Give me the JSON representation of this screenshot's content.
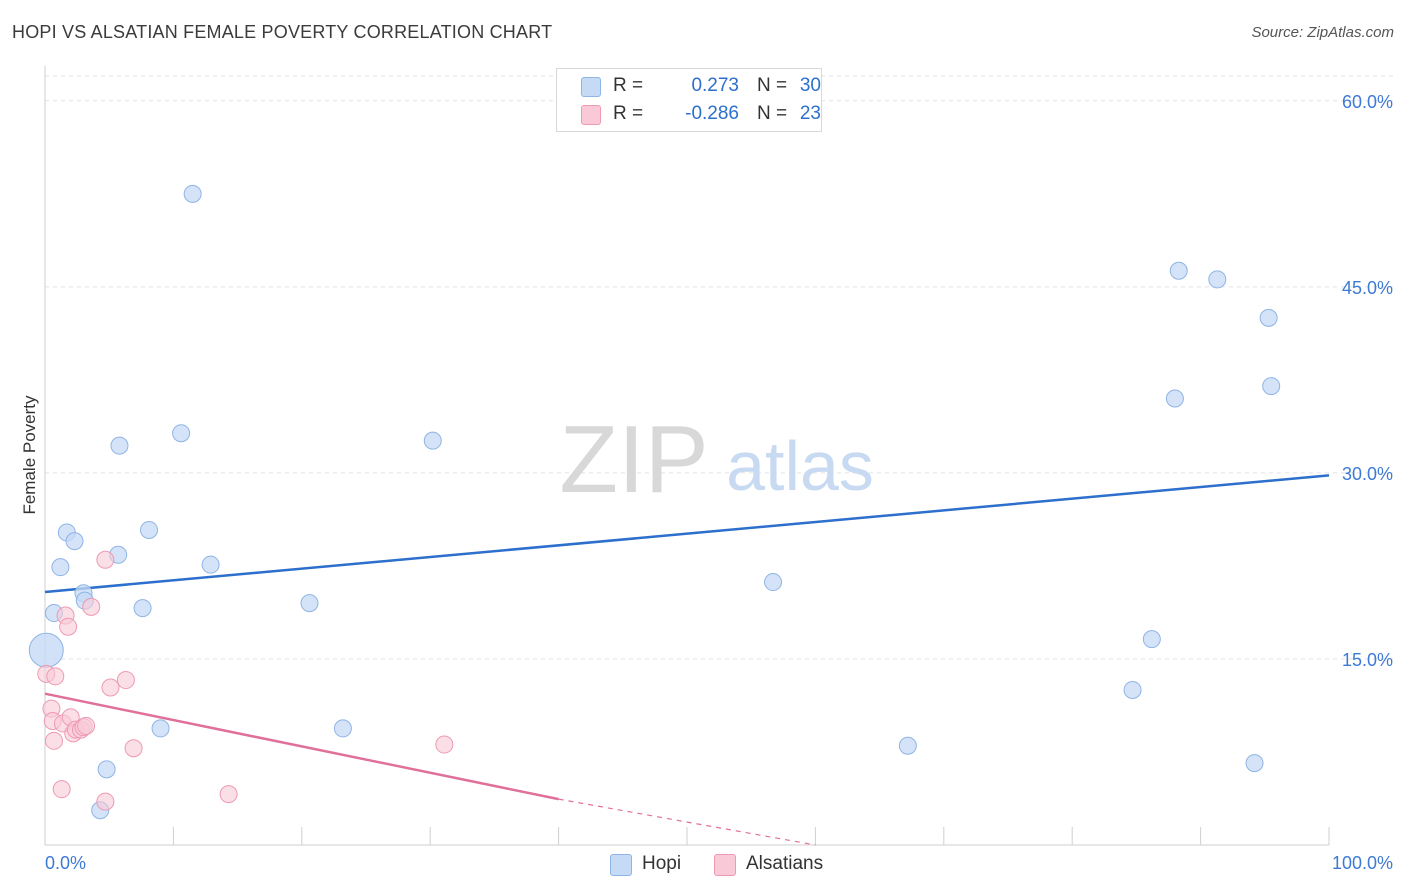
{
  "header": {
    "title": "HOPI VS ALSATIAN FEMALE POVERTY CORRELATION CHART",
    "source": "Source: ZipAtlas.com"
  },
  "watermark": {
    "zip": "ZIP",
    "atlas": "atlas"
  },
  "colors": {
    "hopi_fill": "#c5daf5",
    "hopi_stroke": "#8fb4e6",
    "hopi_line": "#2d6fcc",
    "alsatian_fill": "#f9c9d7",
    "alsatian_stroke": "#ee9ab3",
    "alsatian_line": "#e0709a",
    "tick_label": "#3d7ad6",
    "grid": "#e2e2e2"
  },
  "legend": {
    "rows": [
      {
        "r_label": "R =",
        "r_value": "0.273",
        "n_label": "N =",
        "n_value": "30"
      },
      {
        "r_label": "R =",
        "r_value": "-0.286",
        "n_label": "N =",
        "n_value": "23"
      }
    ],
    "series": [
      "Hopi",
      "Alsatians"
    ]
  },
  "chart_data": {
    "type": "scatter",
    "title": "HOPI VS ALSATIAN FEMALE POVERTY CORRELATION CHART",
    "xlabel": "",
    "ylabel": "Female Poverty",
    "xlim": [
      0,
      100
    ],
    "ylim": [
      0,
      62
    ],
    "x_tick_labels": [
      "0.0%",
      "100.0%"
    ],
    "y_ticks": [
      15,
      30,
      45,
      60
    ],
    "y_tick_labels": [
      "15.0%",
      "30.0%",
      "45.0%",
      "60.0%"
    ],
    "grid": true,
    "legend_position": "top-center",
    "series": [
      {
        "name": "Hopi",
        "r": 0.273,
        "n": 30,
        "points": [
          [
            11.5,
            52.5
          ],
          [
            5.8,
            32.2
          ],
          [
            10.6,
            33.2
          ],
          [
            30.2,
            32.6
          ],
          [
            1.7,
            25.2
          ],
          [
            2.3,
            24.5
          ],
          [
            8.1,
            25.4
          ],
          [
            5.7,
            23.4
          ],
          [
            1.2,
            22.4
          ],
          [
            12.9,
            22.6
          ],
          [
            3.0,
            20.3
          ],
          [
            3.1,
            19.7
          ],
          [
            7.6,
            19.1
          ],
          [
            20.6,
            19.5
          ],
          [
            0.7,
            18.7
          ],
          [
            0.1,
            15.7
          ],
          [
            56.7,
            21.2
          ],
          [
            9.0,
            9.4
          ],
          [
            23.2,
            9.4
          ],
          [
            4.8,
            6.1
          ],
          [
            4.3,
            2.8
          ],
          [
            67.2,
            8.0
          ],
          [
            84.7,
            12.5
          ],
          [
            86.2,
            16.6
          ],
          [
            88.3,
            46.3
          ],
          [
            91.3,
            45.6
          ],
          [
            95.3,
            42.5
          ],
          [
            95.5,
            37.0
          ],
          [
            88.0,
            36.0
          ],
          [
            94.2,
            6.6
          ]
        ],
        "trend": {
          "x": [
            0,
            100
          ],
          "y": [
            20.4,
            29.8
          ]
        }
      },
      {
        "name": "Alsatians",
        "r": -0.286,
        "n": 23,
        "points": [
          [
            4.7,
            23.0
          ],
          [
            1.6,
            18.5
          ],
          [
            1.8,
            17.6
          ],
          [
            3.6,
            19.2
          ],
          [
            0.1,
            13.8
          ],
          [
            0.8,
            13.6
          ],
          [
            0.5,
            11.0
          ],
          [
            0.6,
            10.0
          ],
          [
            1.4,
            9.8
          ],
          [
            2.0,
            10.3
          ],
          [
            2.2,
            9.0
          ],
          [
            2.4,
            9.3
          ],
          [
            2.8,
            9.3
          ],
          [
            3.0,
            9.5
          ],
          [
            3.2,
            9.6
          ],
          [
            0.7,
            8.4
          ],
          [
            5.1,
            12.7
          ],
          [
            6.3,
            13.3
          ],
          [
            6.9,
            7.8
          ],
          [
            1.3,
            4.5
          ],
          [
            4.7,
            3.5
          ],
          [
            14.3,
            4.1
          ],
          [
            31.1,
            8.1
          ]
        ],
        "trend": {
          "x": [
            0,
            40
          ],
          "y": [
            12.2,
            3.7
          ]
        },
        "trend_dashed": {
          "x": [
            40,
            60
          ],
          "y": [
            3.7,
            0.0
          ]
        }
      }
    ]
  }
}
